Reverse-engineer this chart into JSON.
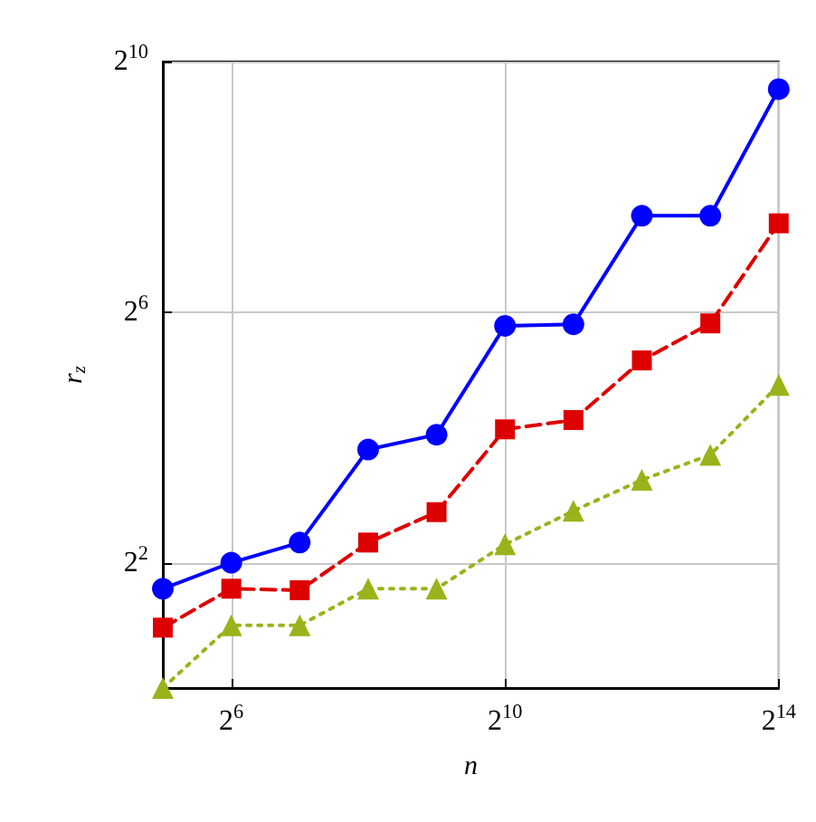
{
  "chart_data": {
    "type": "line",
    "xlabel": "n",
    "ylabel": "r$_{z}$",
    "log": "xy",
    "grid": true,
    "x": [
      32,
      64,
      128,
      256,
      512,
      1024,
      2048,
      4096,
      8192,
      16384
    ],
    "xlim": [
      32,
      16384
    ],
    "xticks": [
      {
        "value": 64,
        "label": "2$^{6}$"
      },
      {
        "value": 1024,
        "label": "2$^{10}$"
      },
      {
        "value": 16384,
        "label": "2$^{14}$"
      }
    ],
    "ylim": [
      1,
      1024
    ],
    "yticks": [
      {
        "value": 4,
        "label": "2$^{2}$"
      },
      {
        "value": 64,
        "label": "2$^{6}$"
      },
      {
        "value": 1024,
        "label": "2$^{10}$"
      }
    ],
    "series": [
      {
        "color": "#0000ff",
        "marker": "circle",
        "line_style": "solid",
        "values": [
          3.0,
          4,
          5,
          14,
          16.5,
          55,
          56,
          186,
          186,
          755
        ]
      },
      {
        "color": "#dd0000",
        "marker": "square",
        "line_style": "dashed",
        "values": [
          1.95,
          3.0,
          2.95,
          5,
          7,
          17.5,
          19.4,
          37.5,
          56.5,
          171
        ]
      },
      {
        "color": "#99b31a",
        "marker": "triangle",
        "line_style": "dotted",
        "values": [
          1,
          2,
          2,
          3,
          3,
          4.9,
          7.1,
          10,
          13.2,
          28.6
        ]
      }
    ]
  }
}
